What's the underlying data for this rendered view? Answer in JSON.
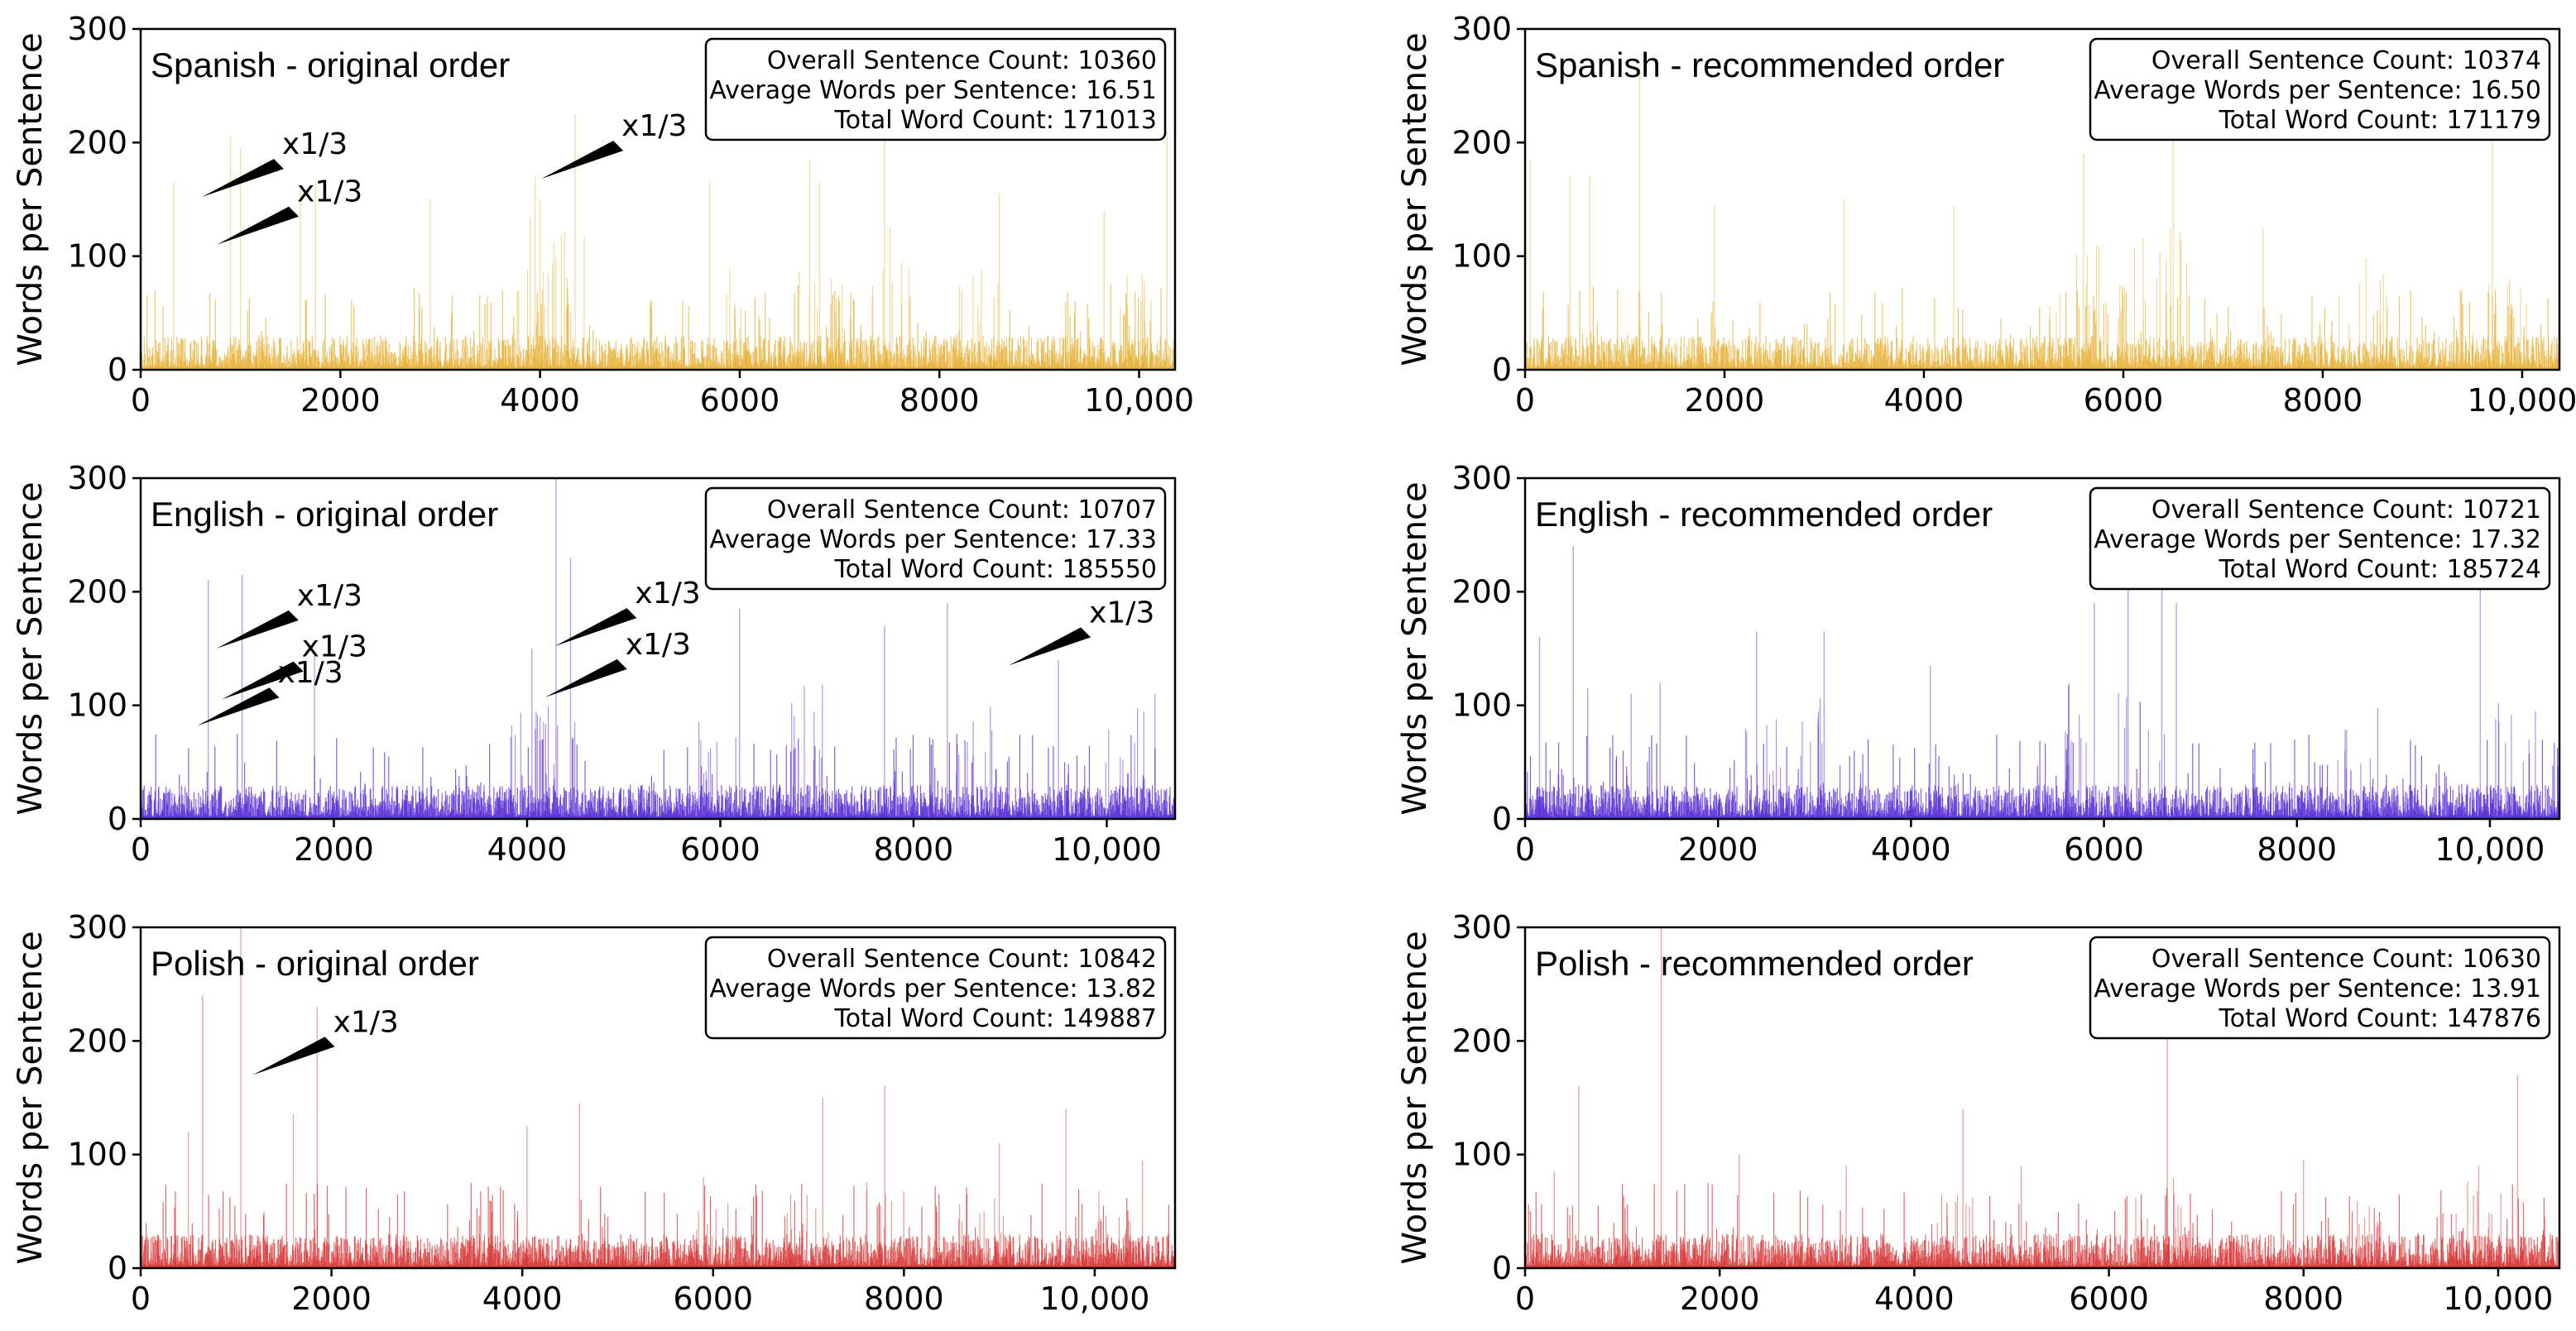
{
  "figure": {
    "y_axis_label": "Words per Sentence",
    "x_tick_labels": [
      "0",
      "2000",
      "4000",
      "6000",
      "8000",
      "10,000"
    ],
    "y_tick_labels": [
      "0",
      "100",
      "200",
      "300"
    ]
  },
  "chart_data": [
    {
      "type": "bar",
      "title": "Spanish - original order",
      "xlabel": "",
      "ylabel": "Words per Sentence",
      "xlim": [
        0,
        10360
      ],
      "ylim": [
        0,
        300
      ],
      "xticks": [
        0,
        2000,
        4000,
        6000,
        8000,
        10000
      ],
      "yticks": [
        0,
        100,
        200,
        300
      ],
      "color": "#e8b23a",
      "stats": {
        "line1": "Overall Sentence Count: 10360",
        "line2": "Average Words per Sentence: 16.51",
        "line3": "Total Word Count: 171013"
      },
      "annotations": [
        {
          "label": "x1/3",
          "x": 1400,
          "y": 190
        },
        {
          "label": "x1/3",
          "x": 1550,
          "y": 148
        },
        {
          "label": "x1/3",
          "x": 4800,
          "y": 206
        }
      ]
    },
    {
      "type": "bar",
      "title": "Spanish - recommended order",
      "xlabel": "",
      "ylabel": "Words per Sentence",
      "xlim": [
        0,
        10374
      ],
      "ylim": [
        0,
        300
      ],
      "xticks": [
        0,
        2000,
        4000,
        6000,
        8000,
        10000
      ],
      "yticks": [
        0,
        100,
        200,
        300
      ],
      "color": "#e8b23a",
      "stats": {
        "line1": "Overall Sentence Count: 10374",
        "line2": "Average Words per Sentence: 16.50",
        "line3": "Total Word Count: 171179"
      },
      "annotations": []
    },
    {
      "type": "bar",
      "title": "English - original order",
      "xlabel": "",
      "ylabel": "Words per Sentence",
      "xlim": [
        0,
        10707
      ],
      "ylim": [
        0,
        300
      ],
      "xticks": [
        0,
        2000,
        4000,
        6000,
        8000,
        10000
      ],
      "yticks": [
        0,
        100,
        200,
        300
      ],
      "color": "#5a2fd6",
      "stats": {
        "line1": "Overall Sentence Count: 10707",
        "line2": "Average Words per Sentence: 17.33",
        "line3": "Total Word Count: 185550"
      },
      "annotations": [
        {
          "label": "x1/3",
          "x": 1600,
          "y": 188
        },
        {
          "label": "x1/3",
          "x": 1650,
          "y": 143
        },
        {
          "label": "x1/3",
          "x": 1400,
          "y": 120
        },
        {
          "label": "x1/3",
          "x": 5100,
          "y": 190
        },
        {
          "label": "x1/3",
          "x": 5000,
          "y": 145
        },
        {
          "label": "x1/3",
          "x": 9800,
          "y": 173
        }
      ]
    },
    {
      "type": "bar",
      "title": "English - recommended order",
      "xlabel": "",
      "ylabel": "Words per Sentence",
      "xlim": [
        0,
        10721
      ],
      "ylim": [
        0,
        300
      ],
      "xticks": [
        0,
        2000,
        4000,
        6000,
        8000,
        10000
      ],
      "yticks": [
        0,
        100,
        200,
        300
      ],
      "color": "#5a2fd6",
      "stats": {
        "line1": "Overall Sentence Count: 10721",
        "line2": "Average Words per Sentence: 17.32",
        "line3": "Total Word Count: 185724"
      },
      "annotations": []
    },
    {
      "type": "bar",
      "title": "Polish - original order",
      "xlabel": "",
      "ylabel": "Words per Sentence",
      "xlim": [
        0,
        10842
      ],
      "ylim": [
        0,
        300
      ],
      "xticks": [
        0,
        2000,
        4000,
        6000,
        8000,
        10000
      ],
      "yticks": [
        0,
        100,
        200,
        300
      ],
      "color": "#d83a3a",
      "stats": {
        "line1": "Overall Sentence Count: 10842",
        "line2": "Average Words per Sentence: 13.82",
        "line3": "Total Word Count: 149887"
      },
      "annotations": [
        {
          "label": "x1/3",
          "x": 2000,
          "y": 208
        }
      ]
    },
    {
      "type": "bar",
      "title": "Polish - recommended order",
      "xlabel": "",
      "ylabel": "Words per Sentence",
      "xlim": [
        0,
        10630
      ],
      "ylim": [
        0,
        300
      ],
      "xticks": [
        0,
        2000,
        4000,
        6000,
        8000,
        10000
      ],
      "yticks": [
        0,
        100,
        200,
        300
      ],
      "color": "#d83a3a",
      "stats": {
        "line1": "Overall Sentence Count: 10630",
        "line2": "Average Words per Sentence: 13.91",
        "line3": "Total Word Count: 147876"
      },
      "annotations": []
    }
  ]
}
